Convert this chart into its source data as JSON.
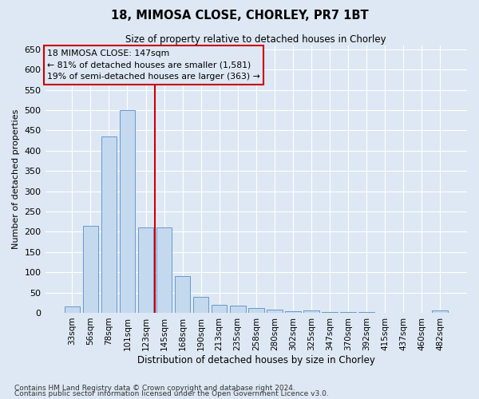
{
  "title": "18, MIMOSA CLOSE, CHORLEY, PR7 1BT",
  "subtitle": "Size of property relative to detached houses in Chorley",
  "xlabel": "Distribution of detached houses by size in Chorley",
  "ylabel": "Number of detached properties",
  "footnote1": "Contains HM Land Registry data © Crown copyright and database right 2024.",
  "footnote2": "Contains public sector information licensed under the Open Government Licence v3.0.",
  "categories": [
    "33sqm",
    "56sqm",
    "78sqm",
    "101sqm",
    "123sqm",
    "145sqm",
    "168sqm",
    "190sqm",
    "213sqm",
    "235sqm",
    "258sqm",
    "280sqm",
    "302sqm",
    "325sqm",
    "347sqm",
    "370sqm",
    "392sqm",
    "415sqm",
    "437sqm",
    "460sqm",
    "482sqm"
  ],
  "values": [
    15,
    215,
    435,
    500,
    210,
    210,
    90,
    40,
    20,
    18,
    12,
    8,
    3,
    5,
    2,
    2,
    2,
    0,
    0,
    0,
    5
  ],
  "bar_color": "#c5d9ee",
  "bar_edge_color": "#6699cc",
  "bg_color": "#dde8f4",
  "grid_color": "#ffffff",
  "annotation_line1": "18 MIMOSA CLOSE: 147sqm",
  "annotation_line2": "← 81% of detached houses are smaller (1,581)",
  "annotation_line3": "19% of semi-detached houses are larger (363) →",
  "vline_color": "#cc0000",
  "annotation_box_edge_color": "#cc0000",
  "ylim": [
    0,
    660
  ],
  "yticks": [
    0,
    50,
    100,
    150,
    200,
    250,
    300,
    350,
    400,
    450,
    500,
    550,
    600,
    650
  ],
  "vline_position": 4.5
}
